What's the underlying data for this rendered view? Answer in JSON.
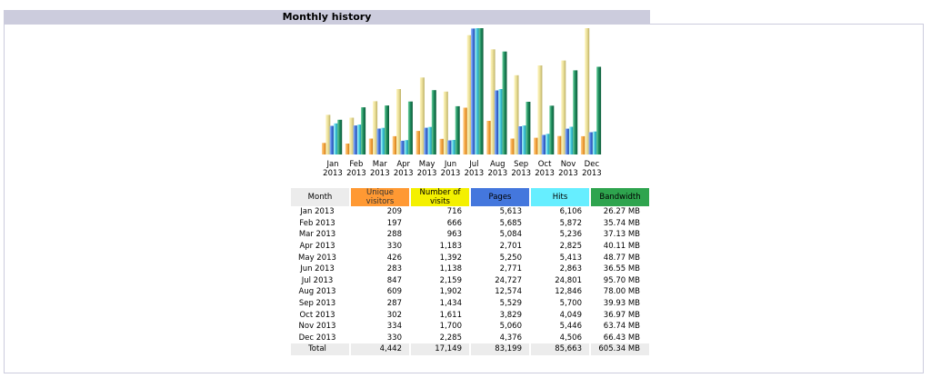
{
  "title": "Monthly history",
  "colors": {
    "unique_visitors": "#ff9933",
    "visits": "#f4f000",
    "pages": "#4477dd",
    "hits": "#66eeff",
    "bandwidth": "#2ea44e",
    "title_bar": "#ccccdd"
  },
  "table": {
    "headers": {
      "month": "Month",
      "visitors": "Unique visitors",
      "visits": "Number of visits",
      "pages": "Pages",
      "hits": "Hits",
      "bandwidth": "Bandwidth"
    },
    "rows": [
      {
        "month": "Jan 2013",
        "visitors": "209",
        "visits": "716",
        "pages": "5,613",
        "hits": "6,106",
        "bandwidth": "26.27 MB"
      },
      {
        "month": "Feb 2013",
        "visitors": "197",
        "visits": "666",
        "pages": "5,685",
        "hits": "5,872",
        "bandwidth": "35.74 MB"
      },
      {
        "month": "Mar 2013",
        "visitors": "288",
        "visits": "963",
        "pages": "5,084",
        "hits": "5,236",
        "bandwidth": "37.13 MB"
      },
      {
        "month": "Apr 2013",
        "visitors": "330",
        "visits": "1,183",
        "pages": "2,701",
        "hits": "2,825",
        "bandwidth": "40.11 MB"
      },
      {
        "month": "May 2013",
        "visitors": "426",
        "visits": "1,392",
        "pages": "5,250",
        "hits": "5,413",
        "bandwidth": "48.77 MB"
      },
      {
        "month": "Jun 2013",
        "visitors": "283",
        "visits": "1,138",
        "pages": "2,771",
        "hits": "2,863",
        "bandwidth": "36.55 MB"
      },
      {
        "month": "Jul 2013",
        "visitors": "847",
        "visits": "2,159",
        "pages": "24,727",
        "hits": "24,801",
        "bandwidth": "95.70 MB"
      },
      {
        "month": "Aug 2013",
        "visitors": "609",
        "visits": "1,902",
        "pages": "12,574",
        "hits": "12,846",
        "bandwidth": "78.00 MB"
      },
      {
        "month": "Sep 2013",
        "visitors": "287",
        "visits": "1,434",
        "pages": "5,529",
        "hits": "5,700",
        "bandwidth": "39.93 MB"
      },
      {
        "month": "Oct 2013",
        "visitors": "302",
        "visits": "1,611",
        "pages": "3,829",
        "hits": "4,049",
        "bandwidth": "36.97 MB"
      },
      {
        "month": "Nov 2013",
        "visitors": "334",
        "visits": "1,700",
        "pages": "5,060",
        "hits": "5,446",
        "bandwidth": "63.74 MB"
      },
      {
        "month": "Dec 2013",
        "visitors": "330",
        "visits": "2,285",
        "pages": "4,376",
        "hits": "4,506",
        "bandwidth": "66.43 MB"
      }
    ],
    "total": {
      "month": "Total",
      "visitors": "4,442",
      "visits": "17,149",
      "pages": "83,199",
      "hits": "85,663",
      "bandwidth": "605.34 MB"
    }
  },
  "chart_data": {
    "type": "bar",
    "title": "",
    "categories": [
      "Jan",
      "Feb",
      "Mar",
      "Apr",
      "May",
      "Jun",
      "Jul",
      "Aug",
      "Sep",
      "Oct",
      "Nov",
      "Dec"
    ],
    "year": "2013",
    "series": [
      {
        "name": "Unique visitors",
        "color": "#ff9933",
        "values": [
          209,
          197,
          288,
          330,
          426,
          283,
          847,
          609,
          287,
          302,
          334,
          330
        ]
      },
      {
        "name": "Number of visits",
        "color": "#f4f000",
        "values": [
          716,
          666,
          963,
          1183,
          1392,
          1138,
          2159,
          1902,
          1434,
          1611,
          1700,
          2285
        ]
      },
      {
        "name": "Pages",
        "color": "#4477dd",
        "values": [
          5613,
          5685,
          5084,
          2701,
          5250,
          2771,
          24727,
          12574,
          5529,
          3829,
          5060,
          4376
        ]
      },
      {
        "name": "Hits",
        "color": "#66eeff",
        "values": [
          6106,
          5872,
          5236,
          2825,
          5413,
          2863,
          24801,
          12846,
          5700,
          4049,
          5446,
          4506
        ]
      },
      {
        "name": "Bandwidth",
        "color": "#2ea44e",
        "values": [
          26.27,
          35.74,
          37.13,
          40.11,
          48.77,
          36.55,
          95.7,
          78.0,
          39.93,
          36.97,
          63.74,
          66.43
        ],
        "unit": "MB"
      }
    ],
    "grid": false,
    "legend": "table below chart"
  }
}
